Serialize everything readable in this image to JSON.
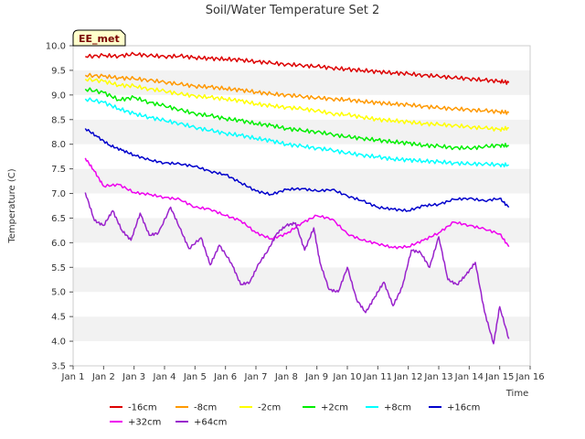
{
  "chart_data": {
    "type": "line",
    "title": "Soil/Water Temperature Set 2",
    "xlabel": "Time",
    "ylabel": "Temperature (C)",
    "badge": "EE_met",
    "xlim": [
      1,
      16
    ],
    "ylim": [
      3.5,
      10.0
    ],
    "xticks": [
      1,
      2,
      3,
      4,
      5,
      6,
      7,
      8,
      9,
      10,
      11,
      12,
      13,
      14,
      15,
      16
    ],
    "xtick_labels": [
      "Jan 1",
      "Jan 2",
      "Jan 3",
      "Jan 4",
      "Jan 5",
      "Jan 6",
      "Jan 7",
      "Jan 8",
      "Jan 9",
      "Jan 10",
      "Jan 11",
      "Jan 12",
      "Jan 13",
      "Jan 14",
      "Jan 15",
      "Jan 16"
    ],
    "yticks": [
      3.5,
      4.0,
      4.5,
      5.0,
      5.5,
      6.0,
      6.5,
      7.0,
      7.5,
      8.0,
      8.5,
      9.0,
      9.5,
      10.0
    ],
    "ytick_labels": [
      "3.5",
      "4.0",
      "4.5",
      "5.0",
      "5.5",
      "6.0",
      "6.5",
      "7.0",
      "7.5",
      "8.0",
      "8.5",
      "9.0",
      "9.5",
      "10.0"
    ],
    "grid": "alternating horizontal bands",
    "legend_position": "bottom",
    "series": [
      {
        "name": "-16cm",
        "color": "#dd0000",
        "x": [
          1.4,
          2,
          2.5,
          3,
          3.5,
          4,
          4.5,
          5,
          5.5,
          6,
          6.5,
          7,
          7.5,
          8,
          8.5,
          9,
          9.5,
          10,
          10.5,
          11,
          11.5,
          12,
          12.5,
          13,
          13.5,
          14,
          14.5,
          15,
          15.3
        ],
        "y": [
          9.78,
          9.8,
          9.79,
          9.83,
          9.8,
          9.78,
          9.79,
          9.76,
          9.74,
          9.73,
          9.71,
          9.68,
          9.65,
          9.62,
          9.6,
          9.58,
          9.55,
          9.52,
          9.5,
          9.47,
          9.45,
          9.43,
          9.4,
          9.38,
          9.35,
          9.33,
          9.3,
          9.28,
          9.25
        ]
      },
      {
        "name": "-8cm",
        "color": "#ff9900",
        "x": [
          1.4,
          2,
          2.5,
          3,
          3.5,
          4,
          4.5,
          5,
          5.5,
          6,
          6.5,
          7,
          7.5,
          8,
          8.5,
          9,
          9.5,
          10,
          10.5,
          11,
          11.5,
          12,
          12.5,
          13,
          13.5,
          14,
          14.5,
          15,
          15.3
        ],
        "y": [
          9.4,
          9.38,
          9.35,
          9.33,
          9.3,
          9.26,
          9.22,
          9.18,
          9.16,
          9.13,
          9.1,
          9.06,
          9.02,
          9.0,
          8.97,
          8.94,
          8.92,
          8.9,
          8.87,
          8.84,
          8.82,
          8.8,
          8.77,
          8.74,
          8.72,
          8.7,
          8.68,
          8.66,
          8.64
        ]
      },
      {
        "name": "-2cm",
        "color": "#ffff00",
        "x": [
          1.4,
          2,
          2.5,
          3,
          3.5,
          4,
          4.5,
          5,
          5.5,
          6,
          6.5,
          7,
          7.5,
          8,
          8.5,
          9,
          9.5,
          10,
          10.5,
          11,
          11.5,
          12,
          12.5,
          13,
          13.5,
          14,
          14.5,
          15,
          15.3
        ],
        "y": [
          9.32,
          9.28,
          9.2,
          9.18,
          9.12,
          9.08,
          9.02,
          8.98,
          8.95,
          8.92,
          8.88,
          8.82,
          8.78,
          8.75,
          8.72,
          8.68,
          8.62,
          8.6,
          8.55,
          8.5,
          8.48,
          8.45,
          8.42,
          8.4,
          8.38,
          8.35,
          8.33,
          8.3,
          8.33
        ]
      },
      {
        "name": "+2cm",
        "color": "#00ee00",
        "x": [
          1.4,
          2,
          2.5,
          3,
          3.5,
          4,
          4.5,
          5,
          5.5,
          6,
          6.5,
          7,
          7.5,
          8,
          8.5,
          9,
          9.5,
          10,
          10.5,
          11,
          11.5,
          12,
          12.5,
          13,
          13.5,
          14,
          14.5,
          15,
          15.3
        ],
        "y": [
          9.12,
          9.05,
          8.9,
          8.95,
          8.85,
          8.78,
          8.7,
          8.62,
          8.58,
          8.52,
          8.48,
          8.42,
          8.38,
          8.32,
          8.28,
          8.25,
          8.2,
          8.15,
          8.12,
          8.08,
          8.05,
          8.02,
          7.98,
          7.96,
          7.93,
          7.92,
          7.95,
          7.98,
          7.97
        ]
      },
      {
        "name": "+8cm",
        "color": "#00ffff",
        "x": [
          1.4,
          2,
          2.5,
          3,
          3.5,
          4,
          4.5,
          5,
          5.5,
          6,
          6.5,
          7,
          7.5,
          8,
          8.5,
          9,
          9.5,
          10,
          10.5,
          11,
          11.5,
          12,
          12.5,
          13,
          13.5,
          14,
          14.5,
          15,
          15.3
        ],
        "y": [
          8.92,
          8.85,
          8.72,
          8.62,
          8.55,
          8.48,
          8.42,
          8.34,
          8.28,
          8.22,
          8.18,
          8.12,
          8.07,
          8.0,
          7.96,
          7.92,
          7.88,
          7.82,
          7.78,
          7.74,
          7.7,
          7.68,
          7.66,
          7.64,
          7.62,
          7.6,
          7.6,
          7.58,
          7.58
        ]
      },
      {
        "name": "+16cm",
        "color": "#0000cc",
        "x": [
          1.4,
          1.8,
          2.2,
          2.6,
          3,
          3.5,
          4,
          4.5,
          5,
          5.5,
          6,
          6.5,
          7,
          7.5,
          8,
          8.5,
          9,
          9.5,
          10,
          10.5,
          11,
          11.5,
          12,
          12.5,
          13,
          13.5,
          14,
          14.5,
          15,
          15.3
        ],
        "y": [
          8.32,
          8.15,
          7.98,
          7.88,
          7.78,
          7.68,
          7.62,
          7.6,
          7.55,
          7.45,
          7.38,
          7.22,
          7.05,
          6.98,
          7.08,
          7.1,
          7.05,
          7.08,
          6.95,
          6.85,
          6.72,
          6.68,
          6.65,
          6.75,
          6.78,
          6.88,
          6.9,
          6.85,
          6.9,
          6.72
        ]
      },
      {
        "name": "+32cm",
        "color": "#ee00ee",
        "x": [
          1.4,
          1.7,
          2,
          2.5,
          3,
          3.5,
          4,
          4.5,
          5,
          5.5,
          6,
          6.5,
          7,
          7.5,
          8,
          8.5,
          9,
          9.5,
          10,
          10.5,
          11,
          11.5,
          12,
          12.5,
          13,
          13.5,
          14,
          14.5,
          15,
          15.3
        ],
        "y": [
          7.72,
          7.45,
          7.15,
          7.18,
          7.02,
          6.98,
          6.92,
          6.88,
          6.72,
          6.68,
          6.55,
          6.45,
          6.2,
          6.08,
          6.18,
          6.4,
          6.55,
          6.48,
          6.18,
          6.05,
          5.98,
          5.9,
          5.92,
          6.05,
          6.2,
          6.42,
          6.35,
          6.28,
          6.18,
          5.92
        ]
      },
      {
        "name": "+64cm",
        "color": "#9922cc",
        "x": [
          1.4,
          1.7,
          2,
          2.3,
          2.6,
          2.9,
          3.2,
          3.5,
          3.8,
          4.2,
          4.5,
          4.8,
          5.2,
          5.5,
          5.8,
          6.2,
          6.5,
          6.8,
          7.1,
          7.4,
          7.7,
          8,
          8.3,
          8.6,
          8.9,
          9.1,
          9.4,
          9.7,
          10,
          10.3,
          10.6,
          10.9,
          11.2,
          11.5,
          11.8,
          12.1,
          12.4,
          12.7,
          13,
          13.3,
          13.6,
          13.9,
          14.2,
          14.5,
          14.8,
          15,
          15.3
        ],
        "y": [
          7.02,
          6.45,
          6.35,
          6.65,
          6.25,
          6.05,
          6.6,
          6.15,
          6.2,
          6.72,
          6.3,
          5.88,
          6.1,
          5.55,
          5.95,
          5.58,
          5.15,
          5.2,
          5.58,
          5.85,
          6.2,
          6.35,
          6.4,
          5.85,
          6.3,
          5.6,
          5.05,
          5.0,
          5.5,
          4.85,
          4.58,
          4.9,
          5.2,
          4.72,
          5.1,
          5.85,
          5.8,
          5.5,
          6.12,
          5.25,
          5.15,
          5.35,
          5.6,
          4.6,
          3.95,
          4.7,
          4.05
        ]
      }
    ]
  }
}
